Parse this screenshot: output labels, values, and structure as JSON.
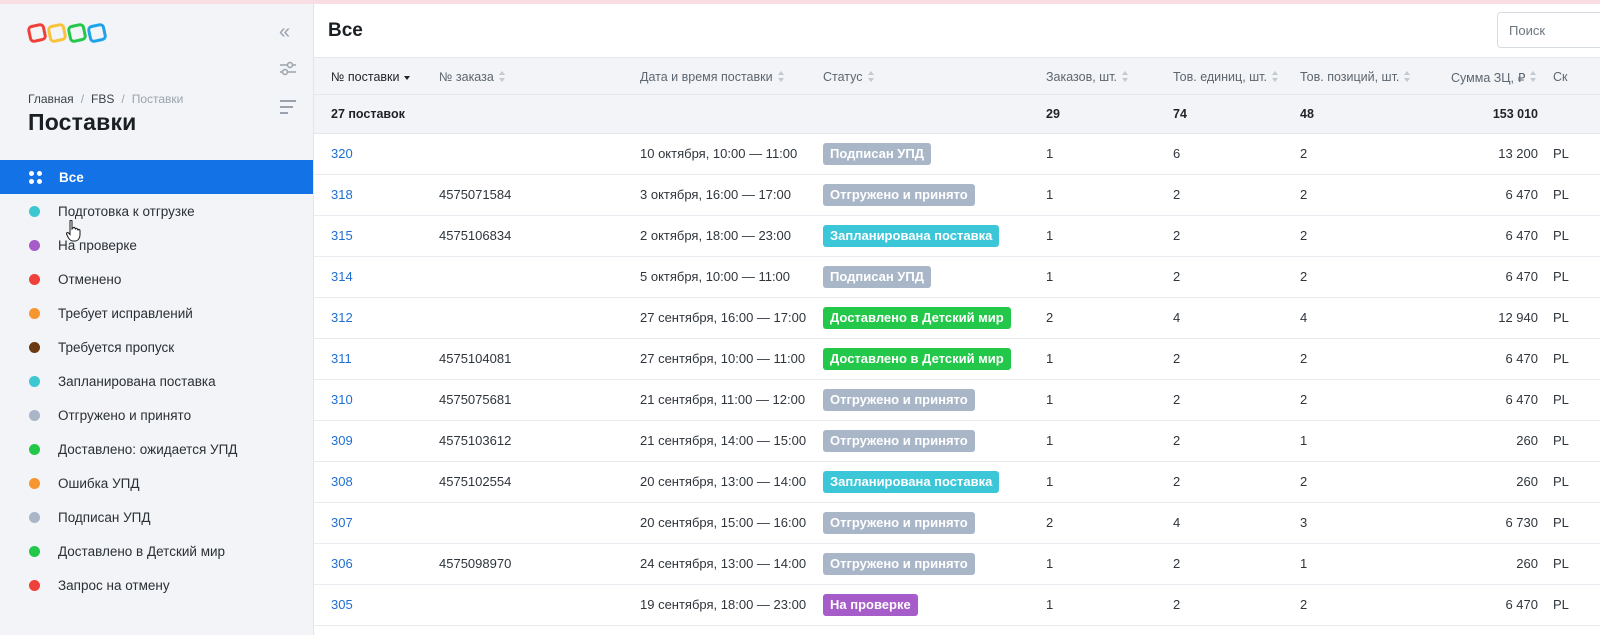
{
  "sidebar": {
    "breadcrumb": [
      "Главная",
      "FBS",
      "Поставки"
    ],
    "title": "Поставки",
    "items": [
      {
        "label": "Все",
        "color": "",
        "active": true
      },
      {
        "label": "Подготовка к отгрузке",
        "color": "#3cc7d1"
      },
      {
        "label": "На проверке",
        "color": "#a65cc9"
      },
      {
        "label": "Отменено",
        "color": "#f0403a"
      },
      {
        "label": "Требует исправлений",
        "color": "#f7962f"
      },
      {
        "label": "Требуется пропуск",
        "color": "#6b3a12"
      },
      {
        "label": "Запланирована поставка",
        "color": "#3cc7d1"
      },
      {
        "label": "Отгружено и принято",
        "color": "#a8b6c8"
      },
      {
        "label": "Доставлено: ожидается УПД",
        "color": "#23c74a"
      },
      {
        "label": "Ошибка УПД",
        "color": "#f7962f"
      },
      {
        "label": "Подписан УПД",
        "color": "#a8b6c8"
      },
      {
        "label": "Доставлено в Детский мир",
        "color": "#23c74a"
      },
      {
        "label": "Запрос на отмену",
        "color": "#f0403a"
      }
    ]
  },
  "main": {
    "title": "Все",
    "search_placeholder": "Поиск"
  },
  "table": {
    "headers": [
      "№ поставки",
      "№ заказа",
      "Дата и время поставки",
      "Статус",
      "Заказов, шт.",
      "Тов. единиц, шт.",
      "Тов. позиций, шт.",
      "Сумма ЗЦ, ₽",
      "Ск"
    ],
    "summary": {
      "label": "27 поставок",
      "orders": "29",
      "units": "74",
      "positions": "48",
      "sum": "153 010"
    },
    "rows": [
      {
        "id": "320",
        "order": "",
        "date": "10 октября, 10:00 — 11:00",
        "status": "Подписан УПД",
        "status_color": "#a8b6c8",
        "orders": "1",
        "units": "6",
        "positions": "2",
        "sum": "13 200",
        "extra": "PL"
      },
      {
        "id": "318",
        "order": "4575071584",
        "date": "3 октября, 16:00 — 17:00",
        "status": "Отгружено и принято",
        "status_color": "#a8b6c8",
        "orders": "1",
        "units": "2",
        "positions": "2",
        "sum": "6 470",
        "extra": "PL"
      },
      {
        "id": "315",
        "order": "4575106834",
        "date": "2 октября, 18:00 — 23:00",
        "status": "Запланирована поставка",
        "status_color": "#3cc7d8",
        "orders": "1",
        "units": "2",
        "positions": "2",
        "sum": "6 470",
        "extra": "PL"
      },
      {
        "id": "314",
        "order": "",
        "date": "5 октября, 10:00 — 11:00",
        "status": "Подписан УПД",
        "status_color": "#a8b6c8",
        "orders": "1",
        "units": "2",
        "positions": "2",
        "sum": "6 470",
        "extra": "PL"
      },
      {
        "id": "312",
        "order": "",
        "date": "27 сентября, 16:00 — 17:00",
        "status": "Доставлено в Детский мир",
        "status_color": "#23c74a",
        "orders": "2",
        "units": "4",
        "positions": "4",
        "sum": "12 940",
        "extra": "PL"
      },
      {
        "id": "311",
        "order": "4575104081",
        "date": "27 сентября, 10:00 — 11:00",
        "status": "Доставлено в Детский мир",
        "status_color": "#23c74a",
        "orders": "1",
        "units": "2",
        "positions": "2",
        "sum": "6 470",
        "extra": "PL"
      },
      {
        "id": "310",
        "order": "4575075681",
        "date": "21 сентября, 11:00 — 12:00",
        "status": "Отгружено и принято",
        "status_color": "#a8b6c8",
        "orders": "1",
        "units": "2",
        "positions": "2",
        "sum": "6 470",
        "extra": "PL"
      },
      {
        "id": "309",
        "order": "4575103612",
        "date": "21 сентября, 14:00 — 15:00",
        "status": "Отгружено и принято",
        "status_color": "#a8b6c8",
        "orders": "1",
        "units": "2",
        "positions": "1",
        "sum": "260",
        "extra": "PL"
      },
      {
        "id": "308",
        "order": "4575102554",
        "date": "20 сентября, 13:00 — 14:00",
        "status": "Запланирована поставка",
        "status_color": "#3cc7d8",
        "orders": "1",
        "units": "2",
        "positions": "2",
        "sum": "260",
        "extra": "PL"
      },
      {
        "id": "307",
        "order": "",
        "date": "20 сентября, 15:00 — 16:00",
        "status": "Отгружено и принято",
        "status_color": "#a8b6c8",
        "orders": "2",
        "units": "4",
        "positions": "3",
        "sum": "6 730",
        "extra": "PL"
      },
      {
        "id": "306",
        "order": "4575098970",
        "date": "24 сентября, 13:00 — 14:00",
        "status": "Отгружено и принято",
        "status_color": "#a8b6c8",
        "orders": "1",
        "units": "2",
        "positions": "1",
        "sum": "260",
        "extra": "PL"
      },
      {
        "id": "305",
        "order": "",
        "date": "19 сентября, 18:00 — 23:00",
        "status": "На проверке",
        "status_color": "#a65cc9",
        "orders": "1",
        "units": "2",
        "positions": "2",
        "sum": "6 470",
        "extra": "PL"
      }
    ]
  }
}
